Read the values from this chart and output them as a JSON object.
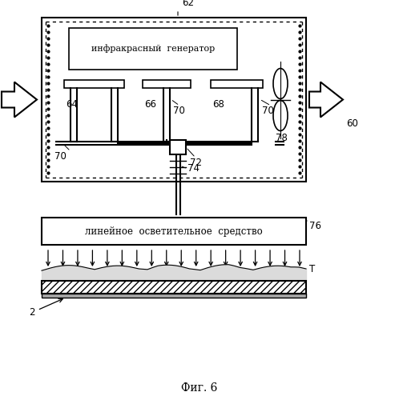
{
  "title": "Фиг. 6",
  "label_62": "62",
  "label_60": "60",
  "label_64": "64",
  "label_66": "66",
  "label_68": "68",
  "label_70a": "70",
  "label_70b": "70",
  "label_70c": "70",
  "label_72": "72",
  "label_74": "74",
  "label_76": "76",
  "label_78": "78",
  "label_2": "2",
  "label_T": "T",
  "text_generator": "инфракрасный  генератор",
  "text_linear": "линейное  осветительное  средство",
  "bg_color": "#ffffff"
}
